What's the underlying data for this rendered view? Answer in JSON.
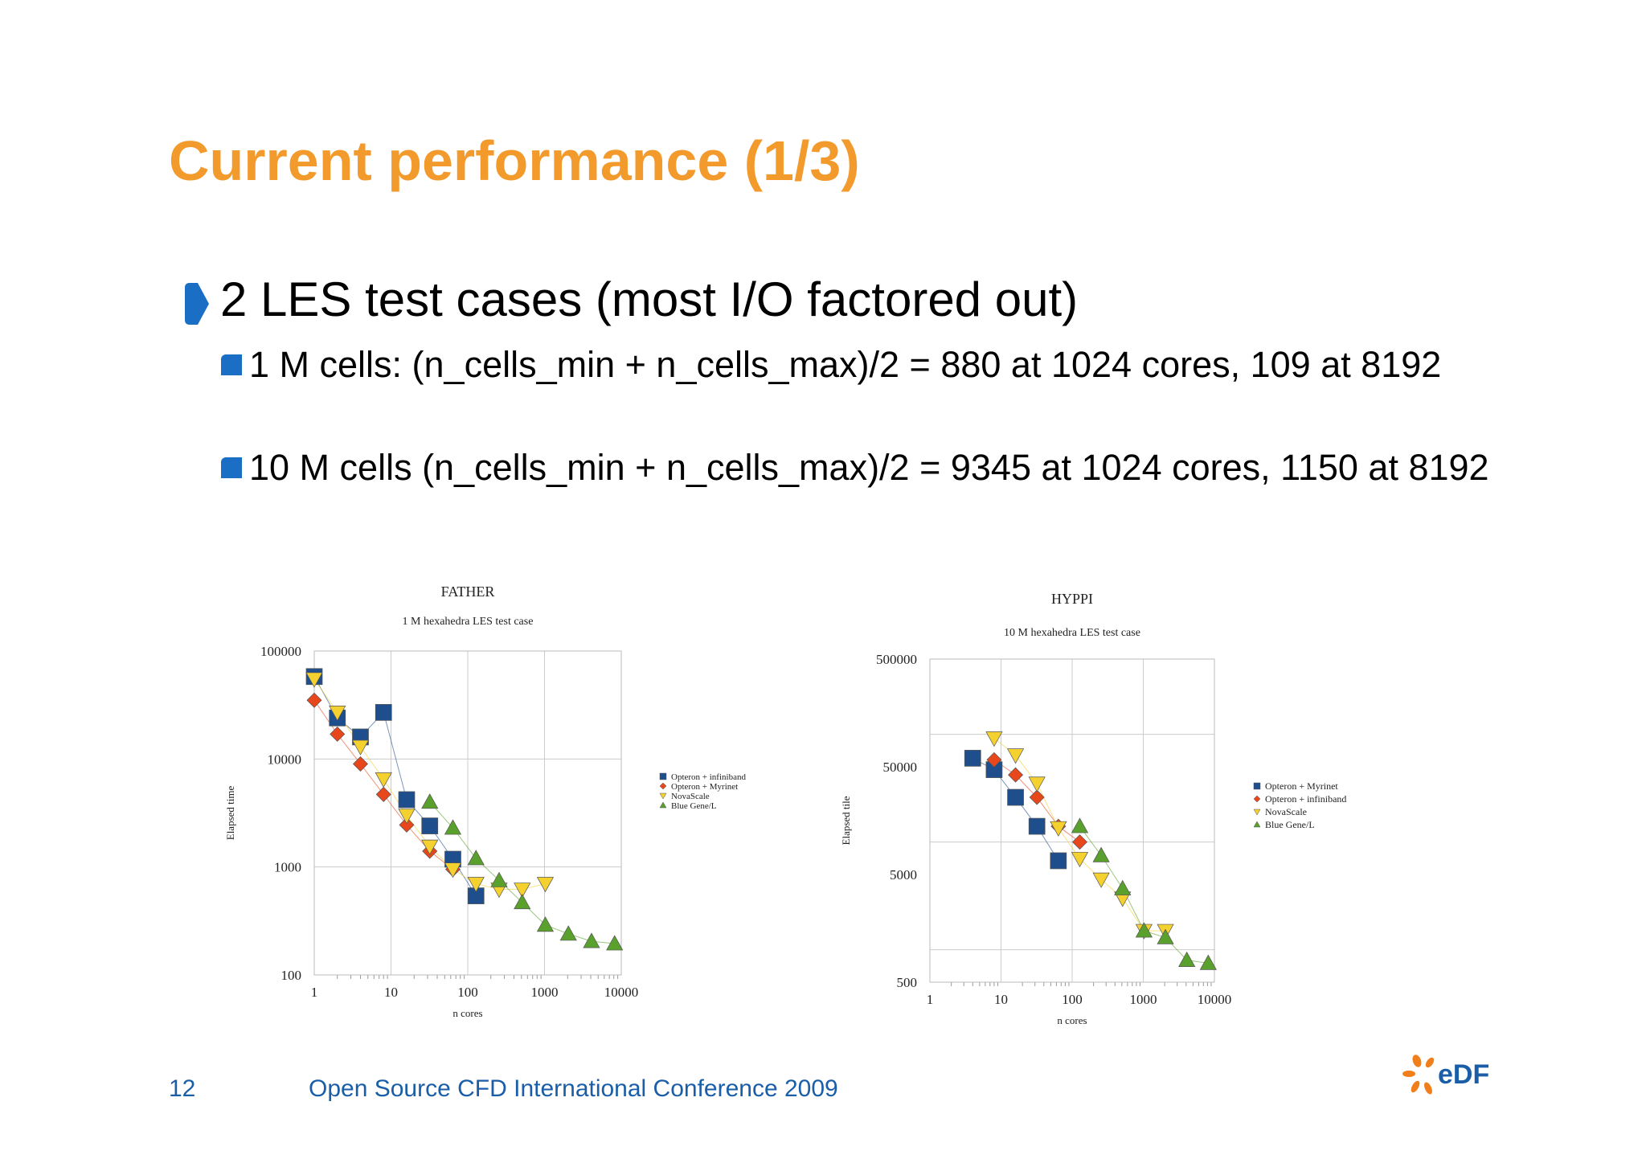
{
  "slide": {
    "title": "Current performance (1/3)",
    "bullet": "2 LES test cases (most I/O factored out)",
    "sub_bullets": [
      "1 M cells: (n_cells_min + n_cells_max)/2 = 880 at 1024 cores, 109 at 8192",
      "10 M cells (n_cells_min + n_cells_max)/2 = 9345 at 1024 cores, 1150 at 8192"
    ],
    "page_number": "12",
    "footer": "Open Source CFD International Conference 2009",
    "logo_text": "eDF"
  },
  "colors": {
    "title": "#f39a2d",
    "bullet_mark": "#1a6fc4",
    "footer": "#1a5ea8",
    "series": [
      "#1f4e8c",
      "#e8471c",
      "#f5d130",
      "#5aa02c"
    ]
  },
  "icons": {
    "bullet": "arrow-bullet-icon",
    "sub_bullet": "square-bullet-icon",
    "logo": "edf-logo-icon"
  },
  "chart_data": [
    {
      "type": "line",
      "title": "FATHER",
      "subtitle": "1 M hexahedra LES test case",
      "xlabel": "n cores",
      "ylabel": "Elapsed time",
      "xscale": "log",
      "yscale": "log",
      "xlim": [
        1,
        10000
      ],
      "ylim": [
        100,
        100000
      ],
      "xticks": [
        "1",
        "10",
        "100",
        "1000",
        "10000"
      ],
      "yticks": [
        "100",
        "1000",
        "10000",
        "100000"
      ],
      "grid": true,
      "legend_position": "right",
      "series": [
        {
          "name": "Opteron + infiniband",
          "marker": "square",
          "x": [
            1,
            2,
            4,
            8,
            16,
            32,
            64,
            128
          ],
          "y": [
            58000,
            24000,
            16000,
            27000,
            4200,
            2400,
            1180,
            540
          ]
        },
        {
          "name": "Opteron + Myrinet",
          "marker": "diamond",
          "x": [
            1,
            2,
            4,
            8,
            16,
            32,
            64
          ],
          "y": [
            35000,
            17000,
            9000,
            4700,
            2450,
            1400,
            950
          ]
        },
        {
          "name": "NovaScale",
          "marker": "triangle-down",
          "x": [
            1,
            2,
            4,
            8,
            16,
            32,
            64,
            128,
            256,
            512,
            1024
          ],
          "y": [
            55000,
            27000,
            13000,
            6500,
            3000,
            1550,
            950,
            700,
            620,
            620,
            700
          ]
        },
        {
          "name": "Blue Gene/L",
          "marker": "triangle-up",
          "x": [
            32,
            64,
            128,
            256,
            512,
            1024,
            2048,
            4096,
            8192
          ],
          "y": [
            4000,
            2300,
            1200,
            750,
            470,
            290,
            240,
            205,
            195
          ]
        }
      ]
    },
    {
      "type": "line",
      "title": "HYPPI",
      "subtitle": "10 M hexahedra LES test case",
      "xlabel": "n cores",
      "ylabel": "Elapsed tile",
      "xscale": "log",
      "yscale": "log",
      "xlim": [
        1,
        10000
      ],
      "ylim": [
        500,
        500000
      ],
      "xticks": [
        "1",
        "10",
        "100",
        "1000",
        "10000"
      ],
      "yticks": [
        "500",
        "5000",
        "50000",
        "500000"
      ],
      "grid": true,
      "legend_position": "right",
      "series": [
        {
          "name": "Opteron + Myrinet",
          "marker": "square",
          "x": [
            4,
            8,
            16,
            32,
            64
          ],
          "y": [
            60000,
            47000,
            26000,
            14000,
            6700
          ]
        },
        {
          "name": "Opteron + infiniband",
          "marker": "diamond",
          "x": [
            8,
            16,
            32,
            64,
            128
          ],
          "y": [
            58000,
            42000,
            26000,
            14000,
            10000
          ]
        },
        {
          "name": "NovaScale",
          "marker": "triangle-down",
          "x": [
            8,
            16,
            32,
            64,
            128,
            256,
            512,
            1024,
            2048
          ],
          "y": [
            92000,
            64000,
            35000,
            13500,
            7000,
            4500,
            3000,
            1500,
            1500
          ]
        },
        {
          "name": "Blue Gene/L",
          "marker": "triangle-up",
          "x": [
            128,
            256,
            512,
            1024,
            2048,
            4096,
            8192
          ],
          "y": [
            14000,
            7500,
            3700,
            1500,
            1300,
            800,
            750
          ]
        }
      ]
    }
  ]
}
